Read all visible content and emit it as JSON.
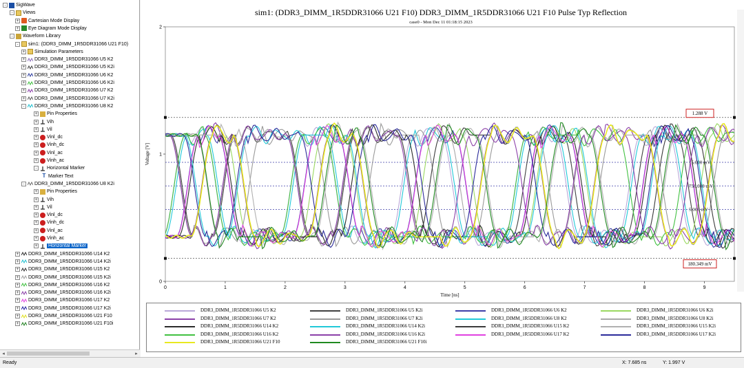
{
  "tree": {
    "items": [
      {
        "label": "SigWave",
        "level": 0,
        "exp": "−",
        "icon": "sigwave",
        "icon_name": "sigwave-app-icon"
      },
      {
        "label": "Views",
        "level": 1,
        "exp": "−",
        "icon": "folder",
        "icon_name": "folder-icon"
      },
      {
        "label": "Cartesian Mode Display",
        "level": 2,
        "exp": "+",
        "icon": "cart",
        "icon_name": "cartesian-display-icon"
      },
      {
        "label": "Eye Diagram Mode Display",
        "level": 2,
        "exp": "+",
        "icon": "eye",
        "icon_name": "eye-diagram-icon"
      },
      {
        "label": "Waveform Library",
        "level": 1,
        "exp": "−",
        "icon": "lib",
        "icon_name": "library-icon"
      },
      {
        "label": "sim1: (DDR3_DIMM_1R5DDR31066 U21 F10)",
        "level": 2,
        "exp": "−",
        "icon": "folder",
        "icon_name": "simulation-folder-icon"
      },
      {
        "label": "Simulation Parameters",
        "level": 3,
        "exp": "+",
        "icon": "folder",
        "icon_name": "parameters-icon"
      },
      {
        "label": "DDR3_DIMM_1R5DDR31066 U5 K2",
        "level": 3,
        "exp": "+",
        "icon": "wave",
        "color": "#8b6dbb",
        "icon_name": "waveform-icon"
      },
      {
        "label": "DDR3_DIMM_1R5DDR31066 U5 K2i",
        "level": 3,
        "exp": "+",
        "icon": "wave",
        "color": "#404040",
        "icon_name": "waveform-icon"
      },
      {
        "label": "DDR3_DIMM_1R5DDR31066 U6 K2",
        "level": 3,
        "exp": "+",
        "icon": "wave",
        "color": "#3040a0",
        "icon_name": "waveform-icon"
      },
      {
        "label": "DDR3_DIMM_1R5DDR31066 U6 K2i",
        "level": 3,
        "exp": "+",
        "icon": "wave",
        "color": "#40c040",
        "icon_name": "waveform-icon"
      },
      {
        "label": "DDR3_DIMM_1R5DDR31066 U7 K2",
        "level": 3,
        "exp": "+",
        "icon": "wave",
        "color": "#8b3fa8",
        "icon_name": "waveform-icon"
      },
      {
        "label": "DDR3_DIMM_1R5DDR31066 U7 K2i",
        "level": 3,
        "exp": "+",
        "icon": "wave",
        "color": "#606060",
        "icon_name": "waveform-icon"
      },
      {
        "label": "DDR3_DIMM_1R5DDR31066 U8 K2",
        "level": 3,
        "exp": "−",
        "icon": "wave",
        "color": "#20c0d0",
        "icon_name": "waveform-icon"
      },
      {
        "label": "Pin Properties",
        "level": 4,
        "exp": "+",
        "icon": "pin",
        "icon_name": "pin-properties-icon"
      },
      {
        "label": "Vih",
        "level": 4,
        "exp": "+",
        "icon": "marker",
        "icon_name": "threshold-icon"
      },
      {
        "label": "Vil",
        "level": 4,
        "exp": "+",
        "icon": "marker",
        "icon_name": "threshold-icon"
      },
      {
        "label": "Vinl_dc",
        "level": 4,
        "exp": "+",
        "icon": "stop",
        "icon_name": "limit-icon"
      },
      {
        "label": "Vinh_dc",
        "level": 4,
        "exp": "+",
        "icon": "stop",
        "icon_name": "limit-icon"
      },
      {
        "label": "Vinl_ac",
        "level": 4,
        "exp": "+",
        "icon": "stop",
        "icon_name": "limit-icon"
      },
      {
        "label": "Vinh_ac",
        "level": 4,
        "exp": "+",
        "icon": "stop",
        "icon_name": "limit-icon"
      },
      {
        "label": "Horizontal Marker",
        "level": 4,
        "exp": "−",
        "icon": "marker",
        "icon_name": "horizontal-marker-icon"
      },
      {
        "label": "Marker Text",
        "level": 5,
        "exp": "",
        "icon": "text",
        "icon_name": "text-icon"
      },
      {
        "label": "DDR3_DIMM_1R5DDR31066 U8 K2i",
        "level": 3,
        "exp": "−",
        "icon": "wave",
        "color": "#707070",
        "icon_name": "waveform-icon"
      },
      {
        "label": "Pin Properties",
        "level": 4,
        "exp": "+",
        "icon": "pin",
        "icon_name": "pin-properties-icon"
      },
      {
        "label": "Vih",
        "level": 4,
        "exp": "+",
        "icon": "marker",
        "icon_name": "threshold-icon"
      },
      {
        "label": "Vil",
        "level": 4,
        "exp": "+",
        "icon": "marker",
        "icon_name": "threshold-icon"
      },
      {
        "label": "Vinl_dc",
        "level": 4,
        "exp": "+",
        "icon": "stop",
        "icon_name": "limit-icon"
      },
      {
        "label": "Vinh_dc",
        "level": 4,
        "exp": "+",
        "icon": "stop",
        "icon_name": "limit-icon"
      },
      {
        "label": "Vinl_ac",
        "level": 4,
        "exp": "+",
        "icon": "stop",
        "icon_name": "limit-icon"
      },
      {
        "label": "Vinh_ac",
        "level": 4,
        "exp": "+",
        "icon": "stop",
        "icon_name": "limit-icon"
      },
      {
        "label": "Horizontal Marker",
        "level": 4,
        "exp": "+",
        "icon": "marker",
        "icon_name": "horizontal-marker-icon",
        "selected": true
      },
      {
        "label": "DDR3_DIMM_1R5DDR31066 U14 K2",
        "level": 2,
        "exp": "+",
        "icon": "wave",
        "color": "#303030",
        "icon_name": "waveform-icon"
      },
      {
        "label": "DDR3_DIMM_1R5DDR31066 U14 K2i",
        "level": 2,
        "exp": "+",
        "icon": "wave",
        "color": "#20c0d0",
        "icon_name": "waveform-icon"
      },
      {
        "label": "DDR3_DIMM_1R5DDR31066 U15 K2",
        "level": 2,
        "exp": "+",
        "icon": "wave",
        "color": "#303030",
        "icon_name": "waveform-icon"
      },
      {
        "label": "DDR3_DIMM_1R5DDR31066 U15 K2i",
        "level": 2,
        "exp": "+",
        "icon": "wave",
        "color": "#a0a0a0",
        "icon_name": "waveform-icon"
      },
      {
        "label": "DDR3_DIMM_1R5DDR31066 U16 K2",
        "level": 2,
        "exp": "+",
        "icon": "wave",
        "color": "#40c040",
        "icon_name": "waveform-icon"
      },
      {
        "label": "DDR3_DIMM_1R5DDR31066 U16 K2i",
        "level": 2,
        "exp": "+",
        "icon": "wave",
        "color": "#8b3fa8",
        "icon_name": "waveform-icon"
      },
      {
        "label": "DDR3_DIMM_1R5DDR31066 U17 K2",
        "level": 2,
        "exp": "+",
        "icon": "wave",
        "color": "#e040e0",
        "icon_name": "waveform-icon"
      },
      {
        "label": "DDR3_DIMM_1R5DDR31066 U17 K2i",
        "level": 2,
        "exp": "+",
        "icon": "wave",
        "color": "#2020a0",
        "icon_name": "waveform-icon"
      },
      {
        "label": "DDR3_DIMM_1R5DDR31066 U21 F10",
        "level": 2,
        "exp": "+",
        "icon": "wave",
        "color": "#e0e020",
        "icon_name": "waveform-icon"
      },
      {
        "label": "DDR3_DIMM_1R5DDR31066 U21 F10i",
        "level": 2,
        "exp": "+",
        "icon": "wave",
        "color": "#208020",
        "icon_name": "waveform-icon"
      }
    ]
  },
  "status": {
    "ready": "Ready",
    "x_readout": "X:  7.685 ns",
    "y_readout": "Y:  1.997 V"
  },
  "plot": {
    "title": "sim1: (DDR3_DIMM_1R5DDR31066 U21 F10) DDR3_DIMM_1R5DDR31066 U21 F10 Pulse Typ Reflection",
    "subtitle": "case0 - Mon Dec 11 01:18:15 2023",
    "ylabel": "Voltage [V]",
    "xlabel": "Time [ns]",
    "marker_high": "1.288 V",
    "marker_low": "180.349 mV",
    "inner_labels": [
      "15.000 mV",
      "750.000 mV",
      "5.000 mV"
    ],
    "background": "#ffffff",
    "ref_line_color": "#3a3aa8"
  },
  "chart_data": {
    "type": "line",
    "xlim": [
      0,
      9.5
    ],
    "ylim": [
      0,
      2
    ],
    "x_ticks": [
      0,
      1,
      2,
      3,
      4,
      5,
      6,
      7,
      8,
      9
    ],
    "y_ticks": [
      0,
      1,
      2
    ],
    "unit_interval_ns": 1.875,
    "high_level": 1.15,
    "low_level": 0.35,
    "reference_lines": [
      1.288,
      0.935,
      0.75,
      0.565,
      0.180349
    ],
    "series": [
      {
        "name": "DDR3_DIMM_1R5DDR31066 U5 K2",
        "color": "#b9a7d8"
      },
      {
        "name": "DDR3_DIMM_1R5DDR31066 U5 K2i",
        "color": "#404040"
      },
      {
        "name": "DDR3_DIMM_1R5DDR31066 U6 K2",
        "color": "#3d3da8"
      },
      {
        "name": "DDR3_DIMM_1R5DDR31066 U6 K2i",
        "color": "#9ad860"
      },
      {
        "name": "DDR3_DIMM_1R5DDR31066 U7 K2",
        "color": "#8b3fa8"
      },
      {
        "name": "DDR3_DIMM_1R5DDR31066 U7 K2i",
        "color": "#9a9a9a"
      },
      {
        "name": "DDR3_DIMM_1R5DDR31066 U8 K2",
        "color": "#20c8d8"
      },
      {
        "name": "DDR3_DIMM_1R5DDR31066 U8 K2i",
        "color": "#a8a8a8"
      },
      {
        "name": "DDR3_DIMM_1R5DDR31066 U14 K2",
        "color": "#2a2a2a"
      },
      {
        "name": "DDR3_DIMM_1R5DDR31066 U14 K2i",
        "color": "#20c8d8"
      },
      {
        "name": "DDR3_DIMM_1R5DDR31066 U15 K2",
        "color": "#3a3a3a"
      },
      {
        "name": "DDR3_DIMM_1R5DDR31066 U15 K2i",
        "color": "#b0b0b0"
      },
      {
        "name": "DDR3_DIMM_1R5DDR31066 U16 K2",
        "color": "#40c040"
      },
      {
        "name": "DDR3_DIMM_1R5DDR31066 U16 K2i",
        "color": "#8b3fa8"
      },
      {
        "name": "DDR3_DIMM_1R5DDR31066 U17 K2",
        "color": "#e040e0"
      },
      {
        "name": "DDR3_DIMM_1R5DDR31066 U17 K2i",
        "color": "#2a2a9a"
      },
      {
        "name": "DDR3_DIMM_1R5DDR31066 U21 F10",
        "color": "#e8e820"
      },
      {
        "name": "DDR3_DIMM_1R5DDR31066 U21 F10i",
        "color": "#208a20"
      }
    ]
  }
}
